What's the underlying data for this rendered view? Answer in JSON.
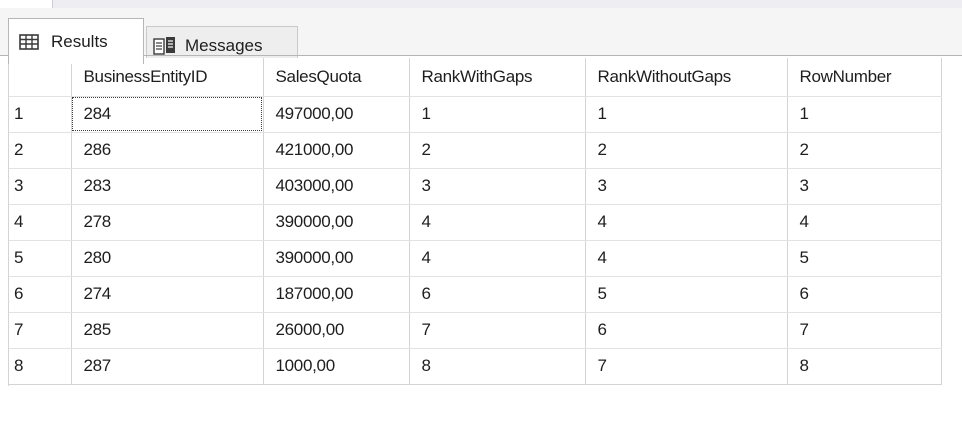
{
  "tabs": {
    "results_label": "Results",
    "messages_label": "Messages",
    "results_icon": "grid-table-icon",
    "messages_icon": "messages-icon"
  },
  "grid": {
    "columns": [
      "",
      "BusinessEntityID",
      "SalesQuota",
      "RankWithGaps",
      "RankWithoutGaps",
      "RowNumber"
    ],
    "rows": [
      [
        "1",
        "284",
        "497000,00",
        "1",
        "1",
        "1"
      ],
      [
        "2",
        "286",
        "421000,00",
        "2",
        "2",
        "2"
      ],
      [
        "3",
        "283",
        "403000,00",
        "3",
        "3",
        "3"
      ],
      [
        "4",
        "278",
        "390000,00",
        "4",
        "4",
        "4"
      ],
      [
        "5",
        "280",
        "390000,00",
        "4",
        "4",
        "5"
      ],
      [
        "6",
        "274",
        "187000,00",
        "6",
        "5",
        "6"
      ],
      [
        "7",
        "285",
        "26000,00",
        "7",
        "6",
        "7"
      ],
      [
        "8",
        "287",
        "1000,00",
        "8",
        "7",
        "8"
      ]
    ]
  }
}
